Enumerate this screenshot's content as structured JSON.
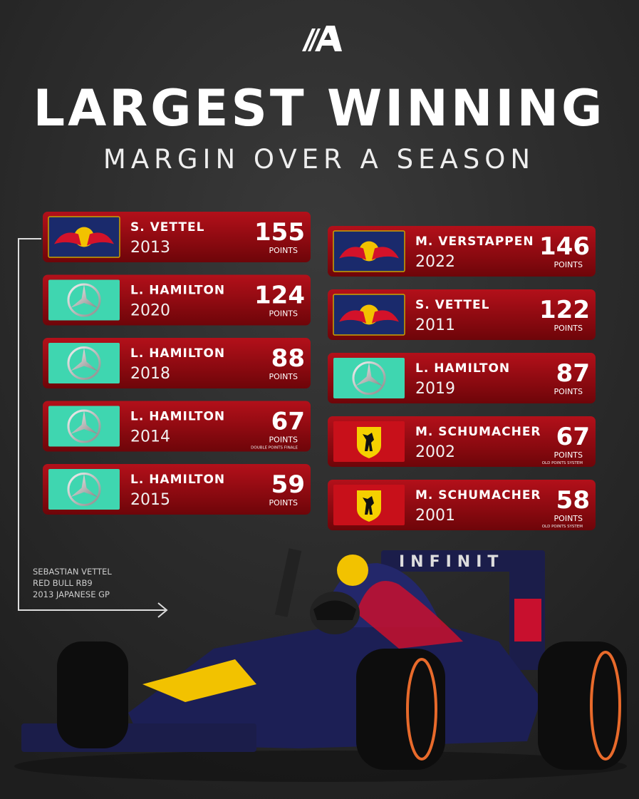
{
  "header": {
    "title": "LARGEST WINNING",
    "subtitle": "MARGIN OVER A SEASON"
  },
  "unit": "POINTS",
  "columns": [
    [
      {
        "driver": "S. VETTEL",
        "year": "2013",
        "margin": 155,
        "logo": "redbull"
      },
      {
        "driver": "L. HAMILTON",
        "year": "2020",
        "margin": 124,
        "logo": "mercedes"
      },
      {
        "driver": "L. HAMILTON",
        "year": "2018",
        "margin": 88,
        "logo": "mercedes"
      },
      {
        "driver": "L. HAMILTON",
        "year": "2014",
        "margin": 67,
        "logo": "mercedes",
        "note": "DOUBLE POINTS FINALE"
      },
      {
        "driver": "L. HAMILTON",
        "year": "2015",
        "margin": 59,
        "logo": "mercedes"
      }
    ],
    [
      {
        "driver": "M. VERSTAPPEN",
        "year": "2022",
        "margin": 146,
        "logo": "redbull"
      },
      {
        "driver": "S. VETTEL",
        "year": "2011",
        "margin": 122,
        "logo": "redbull"
      },
      {
        "driver": "L. HAMILTON",
        "year": "2019",
        "margin": 87,
        "logo": "mercedes"
      },
      {
        "driver": "M. SCHUMACHER",
        "year": "2002",
        "margin": 67,
        "logo": "ferrari",
        "note": "OLD POINTS SYSTEM"
      },
      {
        "driver": "M. SCHUMACHER",
        "year": "2001",
        "margin": 58,
        "logo": "ferrari",
        "note": "OLD POINTS SYSTEM"
      }
    ]
  ],
  "caption": [
    "SEBASTIAN VETTEL",
    "RED BULL RB9",
    "2013 JAPANESE GP"
  ]
}
